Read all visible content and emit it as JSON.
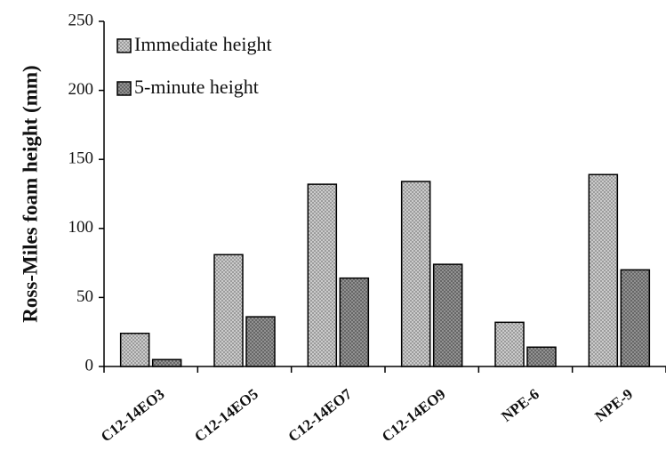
{
  "chart_data": {
    "type": "bar",
    "y_label": "Ross-Miles foam height (mm)",
    "categories": [
      "C12-14EO3",
      "C12-14EO5",
      "C12-14EO7",
      "C12-14EO9",
      "NPE-6",
      "NPE-9"
    ],
    "series": [
      {
        "name": "Immediate height",
        "color": "#d4d4d4",
        "values": [
          24,
          81,
          132,
          134,
          32,
          139
        ]
      },
      {
        "name": "5-minute height",
        "color": "#9a9a9a",
        "values": [
          5,
          36,
          64,
          74,
          14,
          70
        ]
      }
    ],
    "ylim": [
      0,
      250
    ],
    "yticks": [
      0,
      50,
      100,
      150,
      200,
      250
    ],
    "legend": "top-left",
    "grid": false
  }
}
